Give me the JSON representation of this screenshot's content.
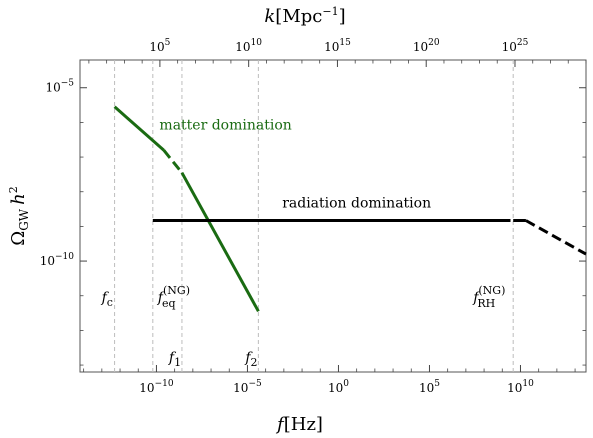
{
  "chart_data": {
    "type": "line",
    "title": "",
    "xlabel": {
      "main": "f",
      "unit": "[Hz]"
    },
    "x2label": {
      "main": "k",
      "unit": "[Mpc",
      "sup": "−1",
      "close": "]"
    },
    "ylabel": {
      "main": "Ω",
      "sub": "GW",
      "h": "h",
      "sup": "2"
    },
    "x_scale": "log",
    "y_scale": "log",
    "xlim_log10": [
      -14.2,
      13.6
    ],
    "ylim_log10": [
      -13.2,
      -4.2
    ],
    "x2lim_log10": [
      0.5,
      29.0
    ],
    "x_ticks": [
      {
        "exp": -10,
        "base": "10",
        "label": "−10"
      },
      {
        "exp": -5,
        "base": "10",
        "label": "−5"
      },
      {
        "exp": 0,
        "base": "10",
        "label": "0"
      },
      {
        "exp": 5,
        "base": "10",
        "label": "5"
      },
      {
        "exp": 10,
        "base": "10",
        "label": "10"
      }
    ],
    "x2_ticks": [
      {
        "exp": 5,
        "base": "10",
        "label": "5"
      },
      {
        "exp": 10,
        "base": "10",
        "label": "10"
      },
      {
        "exp": 15,
        "base": "10",
        "label": "15"
      },
      {
        "exp": 20,
        "base": "10",
        "label": "20"
      },
      {
        "exp": 25,
        "base": "10",
        "label": "25"
      }
    ],
    "y_ticks": [
      {
        "exp": -5,
        "base": "10",
        "label": "−5"
      },
      {
        "exp": -10,
        "base": "10",
        "label": "−10"
      }
    ],
    "grid": false,
    "reference_lines": [
      {
        "name": "f_c",
        "x_log10": -12.3,
        "label": "f",
        "sub": "c"
      },
      {
        "name": "f_eq",
        "x_log10": -10.2,
        "label": "f",
        "sub": "eq",
        "sup": "(NG)"
      },
      {
        "name": "f_1",
        "x_log10": -8.6,
        "label": "f",
        "sub": "1"
      },
      {
        "name": "f_2",
        "x_log10": -4.4,
        "label": "f",
        "sub": "2"
      },
      {
        "name": "f_RH",
        "x_log10": 9.6,
        "label": "f",
        "sub": "RH",
        "sup": "(NG)"
      }
    ],
    "series": [
      {
        "name": "matter domination",
        "color": "#1a6b12",
        "segments": [
          {
            "style": "solid",
            "points": [
              [
                -12.3,
                -5.55
              ],
              [
                -9.6,
                -6.8
              ]
            ]
          },
          {
            "style": "dashed",
            "points": [
              [
                -9.6,
                -6.8
              ],
              [
                -8.6,
                -7.45
              ]
            ]
          },
          {
            "style": "solid",
            "points": [
              [
                -8.6,
                -7.45
              ],
              [
                -4.4,
                -11.45
              ]
            ]
          }
        ]
      },
      {
        "name": "radiation domination",
        "color": "#000000",
        "segments": [
          {
            "style": "solid",
            "points": [
              [
                -10.2,
                -8.83
              ],
              [
                8.9,
                -8.83
              ]
            ]
          },
          {
            "style": "dashed",
            "points": [
              [
                8.9,
                -8.83
              ],
              [
                9.6,
                -8.83
              ]
            ]
          },
          {
            "style": "solid",
            "points": [
              [
                9.6,
                -8.83
              ],
              [
                10.3,
                -8.83
              ]
            ]
          },
          {
            "style": "dashed",
            "points": [
              [
                10.3,
                -8.83
              ],
              [
                13.6,
                -9.8
              ]
            ]
          }
        ]
      }
    ],
    "annotations": [
      {
        "text": "matter domination",
        "color": "#1a6b12",
        "x_log10": -6.2,
        "y_log10": -6.2
      },
      {
        "text": "radiation domination",
        "color": "#000000",
        "x_log10": 1.0,
        "y_log10": -8.45
      }
    ]
  }
}
